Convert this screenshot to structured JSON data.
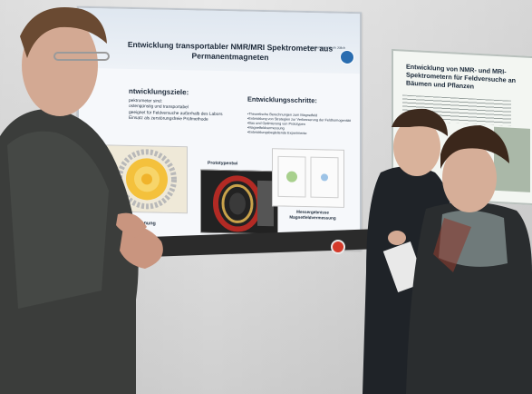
{
  "scene": {
    "poster_main": {
      "title": "Entwicklung transportabler NMR/MRI Spektrometer aus Permanentmagneten",
      "logo": "Forschungszentrum Jülich",
      "goals_heading": "ntwicklungsziele:",
      "goals": [
        "pektrometer sind:",
        "ostengünstig und transportabel",
        "geeignet für Feldversuche außerhalb des Labors",
        "Einsatz als zerstörungsfreie Prüfmethode"
      ],
      "steps_heading": "Entwicklungsschritte:",
      "steps": [
        "•Theoretische Berechnungen zum Magnetfeld",
        "•Entwicklung von Strategien zur Verbesserung der Feldhomogenität",
        "•Bau und Optimierung von Prototypen",
        "•Magnetfeldvermessung",
        "•Entwicklungsbegleitende Experimente"
      ],
      "caption_left": "gnetfeldberechnung",
      "caption_center": "Prototypentwi",
      "caption_right": "Messergebnisse Magnetfeldvermessung"
    },
    "poster_right": {
      "title": "Entwicklung von NMR- und MRI-Spektrometern für Feldversuche an Bäumen und Pflanzen"
    },
    "colors": {
      "poster_bg": "#f6f8fb",
      "poster_header": "#dfe7f0",
      "wall": "#e4e4e4",
      "rail": "#2b2b2b",
      "emergency_stop": "#d43a2a"
    }
  }
}
